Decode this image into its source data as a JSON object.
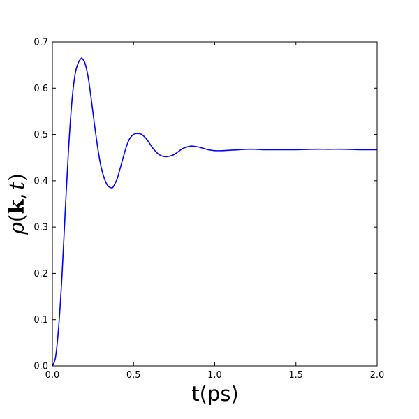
{
  "chart_data": {
    "type": "line",
    "title": "",
    "xlabel": "t(ps)",
    "ylabel": {
      "rho": "ρ",
      "open": "(",
      "k": "k",
      "comma": ",",
      "t": "t",
      "close": ")"
    },
    "xlim": [
      0.0,
      2.0
    ],
    "ylim": [
      0.0,
      0.7
    ],
    "x_ticks": [
      0.0,
      0.5,
      1.0,
      1.5,
      2.0
    ],
    "x_tick_labels": [
      "0.0",
      "0.5",
      "1.0",
      "1.5",
      "2.0"
    ],
    "y_ticks": [
      0.0,
      0.1,
      0.2,
      0.3,
      0.4,
      0.5,
      0.6,
      0.7
    ],
    "y_tick_labels": [
      "0.0",
      "0.1",
      "0.2",
      "0.3",
      "0.4",
      "0.5",
      "0.6",
      "0.7"
    ],
    "grid": false,
    "legend": "none",
    "series": [
      {
        "color": "#0000ff",
        "x": [
          0.0,
          0.02,
          0.04,
          0.06,
          0.08,
          0.1,
          0.12,
          0.14,
          0.16,
          0.18,
          0.185,
          0.2,
          0.22,
          0.24,
          0.26,
          0.28,
          0.3,
          0.32,
          0.34,
          0.36,
          0.37,
          0.38,
          0.4,
          0.42,
          0.44,
          0.46,
          0.48,
          0.5,
          0.52,
          0.55,
          0.58,
          0.6,
          0.62,
          0.64,
          0.66,
          0.68,
          0.7,
          0.72,
          0.74,
          0.76,
          0.78,
          0.8,
          0.82,
          0.84,
          0.86,
          0.88,
          0.9,
          0.92,
          0.94,
          0.96,
          0.98,
          1.0,
          1.05,
          1.1,
          1.15,
          1.2,
          1.25,
          1.3,
          1.35,
          1.4,
          1.5,
          1.6,
          1.7,
          1.8,
          1.9,
          2.0
        ],
        "y": [
          0.0,
          0.02,
          0.09,
          0.2,
          0.34,
          0.47,
          0.57,
          0.63,
          0.655,
          0.665,
          0.663,
          0.655,
          0.625,
          0.575,
          0.52,
          0.47,
          0.43,
          0.405,
          0.39,
          0.385,
          0.385,
          0.39,
          0.405,
          0.43,
          0.455,
          0.478,
          0.493,
          0.5,
          0.502,
          0.5,
          0.49,
          0.48,
          0.47,
          0.462,
          0.456,
          0.453,
          0.452,
          0.453,
          0.455,
          0.459,
          0.464,
          0.469,
          0.472,
          0.474,
          0.475,
          0.474,
          0.473,
          0.471,
          0.469,
          0.467,
          0.466,
          0.465,
          0.465,
          0.466,
          0.467,
          0.468,
          0.468,
          0.467,
          0.467,
          0.467,
          0.467,
          0.468,
          0.468,
          0.468,
          0.467,
          0.467
        ]
      }
    ]
  }
}
